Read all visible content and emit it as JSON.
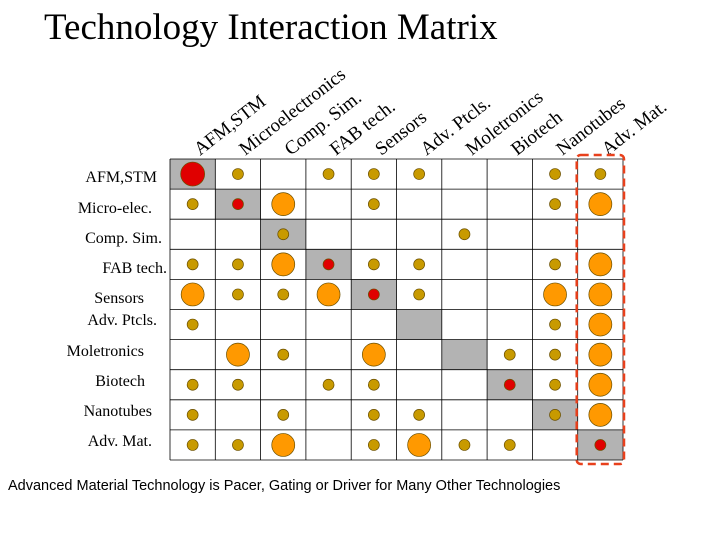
{
  "title": "Technology Interaction Matrix",
  "caption": "Advanced Material Technology is Pacer, Gating or Driver for Many Other Technologies",
  "columns": [
    "AFM,STM",
    "Microelectronics",
    "Comp. Sim.",
    "FAB tech.",
    "Sensors",
    "Adv. Ptcls.",
    "Moletronics",
    "Biotech",
    "Nanotubes",
    "Adv. Mat."
  ],
  "rows": [
    "AFM,STM",
    "Micro-elec.",
    "Comp. Sim.",
    "FAB tech.",
    "Sensors",
    "Adv. Ptcls.",
    "Moletronics",
    "Biotech",
    "Nanotubes",
    "Adv. Mat."
  ],
  "colors": {
    "self_cell": "#b3b3b3",
    "self_dot": "#e00000",
    "small_dot": "#c89a00",
    "large_dot": "#ff9900",
    "highlight": "#e8401c",
    "grid": "#000000"
  },
  "highlight_column": "Adv. Mat.",
  "dot_types": [
    "small",
    "large",
    "self"
  ],
  "cells": [
    [
      [
        "self",
        "small",
        "",
        "small",
        "small",
        "small",
        "",
        "",
        "small",
        "small"
      ]
    ],
    [
      [
        "small",
        "self",
        "large",
        "",
        "small",
        "",
        "",
        "",
        "small",
        "large"
      ]
    ],
    [
      [
        "",
        "",
        "small",
        "",
        "",
        "",
        "small",
        "",
        "",
        ""
      ]
    ],
    [
      [
        "small",
        "small",
        "large",
        "self",
        "small",
        "small",
        "",
        "",
        "small",
        "large"
      ]
    ],
    [
      [
        "large",
        "small",
        "small",
        "large",
        "self",
        "small",
        "",
        "",
        "large",
        "large"
      ]
    ],
    [
      [
        "small",
        "",
        "",
        "",
        "",
        "",
        "",
        "",
        "small",
        "large"
      ]
    ],
    [
      [
        "",
        "large",
        "small",
        "",
        "large",
        "",
        "",
        "small",
        "small",
        "large"
      ]
    ],
    [
      [
        "small",
        "small",
        "",
        "small",
        "small",
        "",
        "",
        "self",
        "small",
        "large"
      ]
    ],
    [
      [
        "small",
        "",
        "small",
        "",
        "small",
        "small",
        "",
        "",
        "small",
        "large"
      ]
    ],
    [
      [
        "small",
        "small",
        "large",
        "",
        "small",
        "large",
        "small",
        "small",
        "",
        "self"
      ]
    ]
  ]
}
